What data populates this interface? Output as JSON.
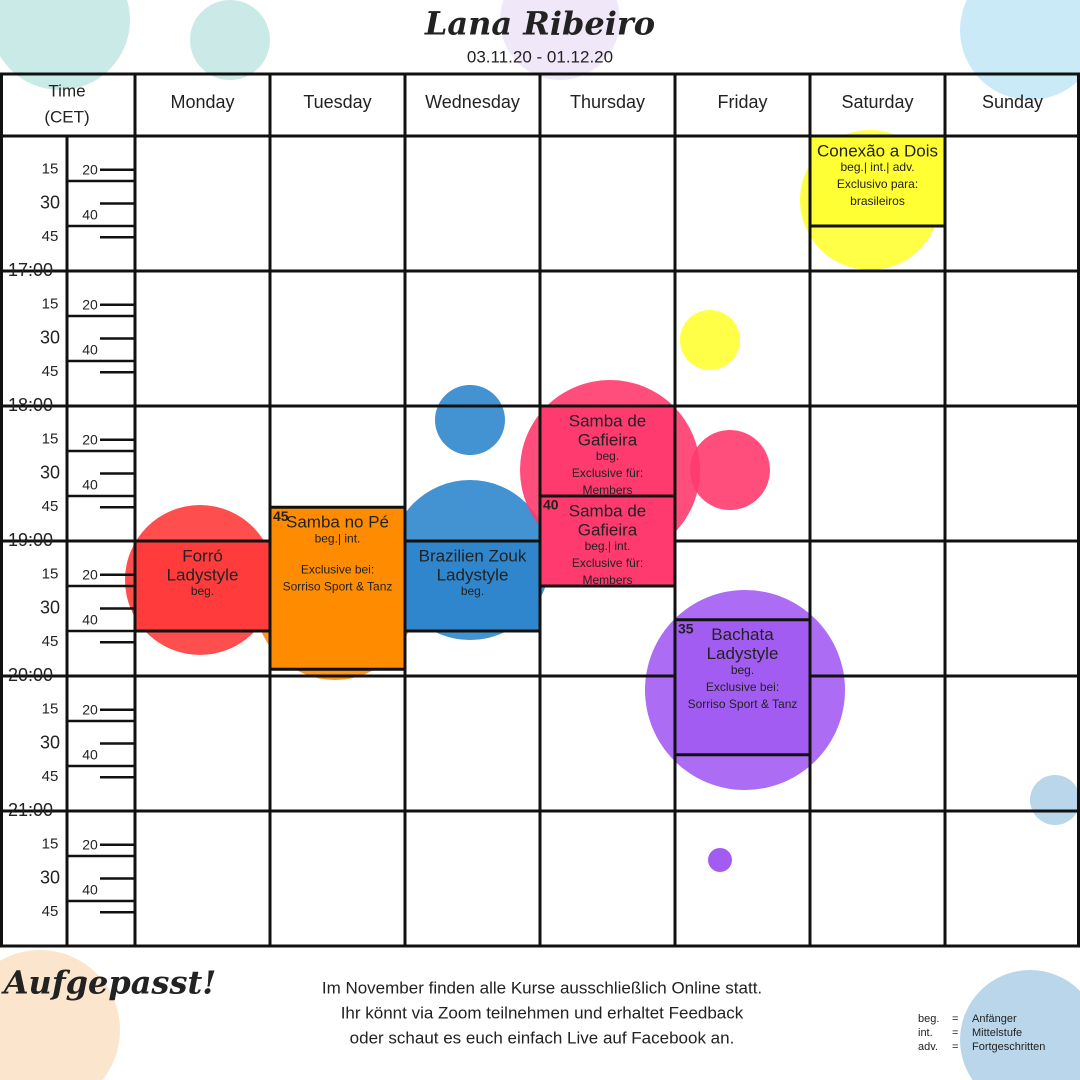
{
  "header": {
    "title": "Lana Ribeiro",
    "dates": "03.11.20 - 01.12.20"
  },
  "table": {
    "time_header": [
      "Time",
      "(CET)"
    ],
    "days": [
      "Monday",
      "Tuesday",
      "Wednesday",
      "Thursday",
      "Friday",
      "Saturday",
      "Sunday"
    ],
    "hours": [
      "17:00",
      "18:00",
      "19:00",
      "20:00",
      "21:00"
    ],
    "quarter_labels": [
      "15",
      "30",
      "45"
    ],
    "minor_labels": [
      "20",
      "40"
    ]
  },
  "events": [
    {
      "title_lines": [
        "Conexão a Dois"
      ],
      "level": "beg.| int.| adv.",
      "note_lines": [
        "Exclusivo para:",
        "brasileiros"
      ]
    },
    {
      "title_lines": [
        "Forró",
        "Ladystyle"
      ],
      "level": "beg."
    },
    {
      "title_lines": [
        "Samba no Pé"
      ],
      "level": "beg.| int.",
      "note_lines": [
        "Exclusive bei:",
        "Sorriso Sport & Tanz"
      ],
      "start_label": "45"
    },
    {
      "title_lines": [
        "Brazilien Zouk",
        "Ladystyle"
      ],
      "level": "beg."
    },
    {
      "title_lines": [
        "Samba de",
        "Gafieira"
      ],
      "level": "beg.",
      "note_lines": [
        "Exclusive für:",
        "Members"
      ]
    },
    {
      "title_lines": [
        "Samba de",
        "Gafieira"
      ],
      "level": "beg.| int.",
      "note_lines": [
        "Exclusive für:",
        "Members"
      ],
      "start_label": "40"
    },
    {
      "title_lines": [
        "Bachata",
        "Ladystyle"
      ],
      "level": "beg.",
      "note_lines": [
        "Exclusive bei:",
        "Sorriso Sport & Tanz"
      ],
      "start_label": "35"
    }
  ],
  "footer": {
    "heading": "Aufgepasst!",
    "message_lines": [
      "Im November finden alle Kurse ausschließlich Online statt.",
      "Ihr könnt via Zoom teilnehmen und erhaltet Feedback",
      "oder schaut es euch einfach Live auf Facebook an."
    ],
    "legend": [
      {
        "abbr": "beg.",
        "eq": "=",
        "meaning": "Anfänger"
      },
      {
        "abbr": "int.",
        "eq": "=",
        "meaning": "Mittelstufe"
      },
      {
        "abbr": "adv.",
        "eq": "=",
        "meaning": "Fortgeschritten"
      }
    ]
  }
}
